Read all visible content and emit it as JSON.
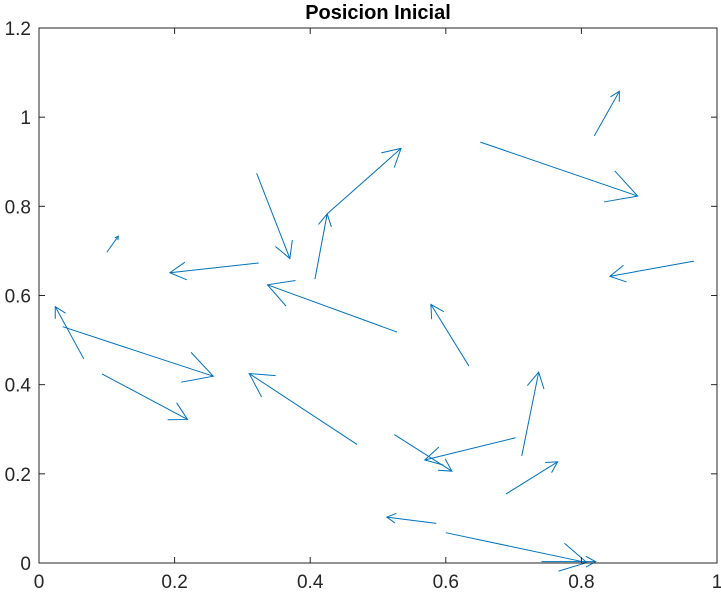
{
  "chart_data": {
    "type": "quiver",
    "title": "Posicion Inicial",
    "xlabel": "",
    "ylabel": "",
    "xlim": [
      0,
      1
    ],
    "ylim": [
      0,
      1.2
    ],
    "xticks": [
      0,
      0.2,
      0.4,
      0.6,
      0.8,
      1
    ],
    "yticks": [
      0,
      0.2,
      0.4,
      0.6,
      0.8,
      1,
      1.2
    ],
    "xtick_labels": [
      "0",
      "0.2",
      "0.4",
      "0.6",
      "0.8",
      "1"
    ],
    "ytick_labels": [
      "0",
      "0.2",
      "0.4",
      "0.6",
      "0.8",
      "1",
      "1.2"
    ],
    "grid": false,
    "box": true,
    "arrow_color": "#0072BD",
    "arrows": [
      {
        "x": 0.819,
        "y": 0.958,
        "x2": 0.856,
        "y2": 1.058
      },
      {
        "x": 0.651,
        "y": 0.944,
        "x2": 0.883,
        "y2": 0.823
      },
      {
        "x": 0.528,
        "y": 0.518,
        "x2": 0.337,
        "y2": 0.624
      },
      {
        "x": 0.469,
        "y": 0.266,
        "x2": 0.31,
        "y2": 0.425
      },
      {
        "x": 0.321,
        "y": 0.874,
        "x2": 0.37,
        "y2": 0.683
      },
      {
        "x": 0.324,
        "y": 0.673,
        "x2": 0.193,
        "y2": 0.651
      },
      {
        "x": 0.407,
        "y": 0.637,
        "x2": 0.425,
        "y2": 0.783
      },
      {
        "x": 0.425,
        "y": 0.783,
        "x2": 0.534,
        "y2": 0.93
      },
      {
        "x": 0.966,
        "y": 0.677,
        "x2": 0.842,
        "y2": 0.643
      },
      {
        "x": 0.1,
        "y": 0.697,
        "x2": 0.117,
        "y2": 0.733
      },
      {
        "x": 0.066,
        "y": 0.458,
        "x2": 0.024,
        "y2": 0.575
      },
      {
        "x": 0.035,
        "y": 0.53,
        "x2": 0.257,
        "y2": 0.419
      },
      {
        "x": 0.093,
        "y": 0.424,
        "x2": 0.219,
        "y2": 0.322
      },
      {
        "x": 0.634,
        "y": 0.442,
        "x2": 0.578,
        "y2": 0.58
      },
      {
        "x": 0.712,
        "y": 0.24,
        "x2": 0.737,
        "y2": 0.428
      },
      {
        "x": 0.703,
        "y": 0.281,
        "x2": 0.569,
        "y2": 0.231
      },
      {
        "x": 0.524,
        "y": 0.288,
        "x2": 0.609,
        "y2": 0.206
      },
      {
        "x": 0.689,
        "y": 0.155,
        "x2": 0.765,
        "y2": 0.227
      },
      {
        "x": 0.586,
        "y": 0.089,
        "x2": 0.513,
        "y2": 0.103
      },
      {
        "x": 0.6,
        "y": 0.068,
        "x2": 0.808,
        "y2": 0.001
      },
      {
        "x": 0.741,
        "y": 0.003,
        "x2": 0.821,
        "y2": 0.003
      }
    ]
  }
}
